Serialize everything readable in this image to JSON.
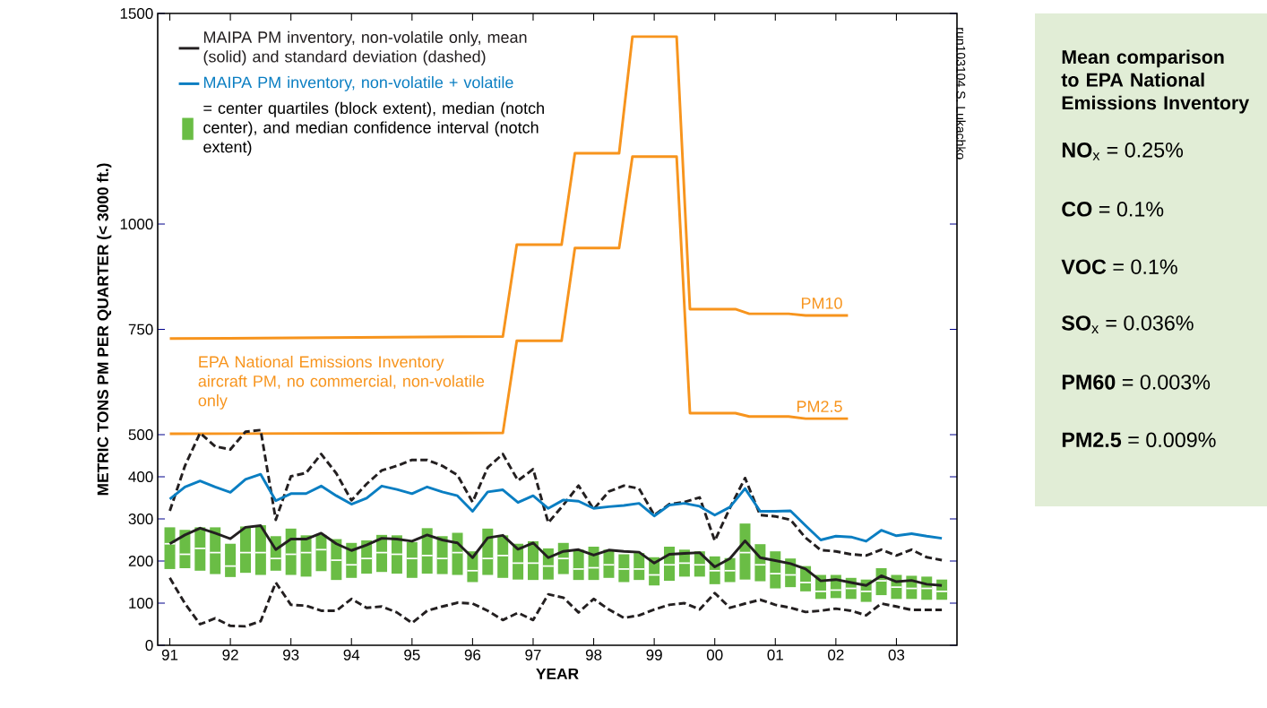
{
  "chart_data": [
    {
      "type": "line",
      "xlabel": "YEAR",
      "ylabel": "METRIC TONS PM PER QUARTER (< 3000 ft.)",
      "x": [
        1991,
        1991.25,
        1991.5,
        1991.75,
        1992,
        1992.25,
        1992.5,
        1992.75,
        1993,
        1993.25,
        1993.5,
        1993.75,
        1994,
        1994.25,
        1994.5,
        1994.75,
        1995,
        1995.25,
        1995.5,
        1995.75,
        1996,
        1996.25,
        1996.5,
        1996.75,
        1997,
        1997.25,
        1997.5,
        1997.75,
        1998,
        1998.25,
        1998.5,
        1998.75,
        1999,
        1999.25,
        1999.5,
        1999.75,
        2000,
        2000.25,
        2000.5,
        2000.75,
        2001,
        2001.25,
        2001.5,
        2001.75,
        2002,
        2002.25,
        2002.5,
        2002.75,
        2003,
        2003.25,
        2003.5,
        2003.75
      ],
      "xlim": [
        1990.8,
        2004.0
      ],
      "xticks": [
        {
          "value": 1991,
          "label": "91"
        },
        {
          "value": 1992,
          "label": "92"
        },
        {
          "value": 1993,
          "label": "93"
        },
        {
          "value": 1994,
          "label": "94"
        },
        {
          "value": 1995,
          "label": "95"
        },
        {
          "value": 1996,
          "label": "96"
        },
        {
          "value": 1997,
          "label": "97"
        },
        {
          "value": 1998,
          "label": "98"
        },
        {
          "value": 1999,
          "label": "99"
        },
        {
          "value": 2000,
          "label": "00"
        },
        {
          "value": 2001,
          "label": "01"
        },
        {
          "value": 2002,
          "label": "02"
        },
        {
          "value": 2003,
          "label": "03"
        }
      ],
      "ylim": [
        0,
        1500
      ],
      "yticks": [
        0,
        100,
        200,
        300,
        400,
        500,
        750,
        1000,
        1500
      ],
      "legend": "top left",
      "series": [
        {
          "name": "MAIPA PM inventory, non-volatile only, mean (solid) and standard deviation (dashed)",
          "color": "#231f20",
          "values": [
            241,
            262,
            278,
            266,
            253,
            280,
            284,
            227,
            252,
            252,
            266,
            241,
            225,
            238,
            254,
            252,
            247,
            262,
            250,
            243,
            208,
            255,
            261,
            228,
            243,
            208,
            223,
            227,
            214,
            226,
            223,
            221,
            195,
            216,
            218,
            220,
            186,
            206,
            248,
            208,
            201,
            194,
            181,
            153,
            156,
            149,
            142,
            165,
            151,
            154,
            145,
            142
          ]
        },
        {
          "name": "MAIPA PM inventory, non-volatile + volatile",
          "color": "#0a7ec2",
          "values": [
            347,
            376,
            390,
            376,
            363,
            394,
            406,
            343,
            360,
            360,
            378,
            355,
            335,
            349,
            378,
            370,
            360,
            376,
            364,
            355,
            318,
            364,
            369,
            339,
            355,
            325,
            345,
            342,
            325,
            329,
            332,
            337,
            307,
            333,
            337,
            330,
            309,
            328,
            372,
            318,
            318,
            319,
            284,
            250,
            259,
            257,
            247,
            273,
            260,
            265,
            259,
            254
          ]
        },
        {
          "name": "= center quartiles (block extent), median (notch center), and median confidence interval (notch extent)",
          "type": "box",
          "color": "#6abd45",
          "boxes": [
            {
              "low": 181,
              "q1": 181,
              "median": 241,
              "q3": 280,
              "high": 280
            },
            {
              "low": 183,
              "q1": 183,
              "median": 216,
              "q3": 274,
              "high": 274
            },
            {
              "low": 177,
              "q1": 177,
              "median": 230,
              "q3": 280,
              "high": 280
            },
            {
              "low": 169,
              "q1": 169,
              "median": 220,
              "q3": 280,
              "high": 280
            },
            {
              "low": 162,
              "q1": 162,
              "median": 188,
              "q3": 241,
              "high": 241
            },
            {
              "low": 172,
              "q1": 172,
              "median": 220,
              "q3": 282,
              "high": 282
            },
            {
              "low": 167,
              "q1": 167,
              "median": 220,
              "q3": 285,
              "high": 285
            },
            {
              "low": 177,
              "q1": 177,
              "median": 206,
              "q3": 259,
              "high": 259
            },
            {
              "low": 167,
              "q1": 167,
              "median": 216,
              "q3": 277,
              "high": 277
            },
            {
              "low": 163,
              "q1": 163,
              "median": 220,
              "q3": 261,
              "high": 261
            },
            {
              "low": 176,
              "q1": 176,
              "median": 227,
              "q3": 262,
              "high": 262
            },
            {
              "low": 155,
              "q1": 155,
              "median": 202,
              "q3": 252,
              "high": 252
            },
            {
              "low": 160,
              "q1": 160,
              "median": 191,
              "q3": 243,
              "high": 243
            },
            {
              "low": 170,
              "q1": 170,
              "median": 206,
              "q3": 249,
              "high": 249
            },
            {
              "low": 174,
              "q1": 174,
              "median": 220,
              "q3": 262,
              "high": 262
            },
            {
              "low": 170,
              "q1": 170,
              "median": 216,
              "q3": 261,
              "high": 261
            },
            {
              "low": 160,
              "q1": 160,
              "median": 206,
              "q3": 245,
              "high": 245
            },
            {
              "low": 170,
              "q1": 170,
              "median": 213,
              "q3": 278,
              "high": 278
            },
            {
              "low": 169,
              "q1": 169,
              "median": 206,
              "q3": 259,
              "high": 259
            },
            {
              "low": 167,
              "q1": 167,
              "median": 220,
              "q3": 267,
              "high": 267
            },
            {
              "low": 150,
              "q1": 150,
              "median": 177,
              "q3": 223,
              "high": 223
            },
            {
              "low": 167,
              "q1": 167,
              "median": 206,
              "q3": 277,
              "high": 277
            },
            {
              "low": 160,
              "q1": 160,
              "median": 213,
              "q3": 261,
              "high": 261
            },
            {
              "low": 156,
              "q1": 156,
              "median": 195,
              "q3": 241,
              "high": 241
            },
            {
              "low": 155,
              "q1": 155,
              "median": 195,
              "q3": 247,
              "high": 247
            },
            {
              "low": 156,
              "q1": 156,
              "median": 188,
              "q3": 230,
              "high": 230
            },
            {
              "low": 169,
              "q1": 169,
              "median": 206,
              "q3": 243,
              "high": 243
            },
            {
              "low": 155,
              "q1": 155,
              "median": 181,
              "q3": 227,
              "high": 227
            },
            {
              "low": 155,
              "q1": 155,
              "median": 184,
              "q3": 234,
              "high": 234
            },
            {
              "low": 160,
              "q1": 160,
              "median": 191,
              "q3": 227,
              "high": 227
            },
            {
              "low": 150,
              "q1": 150,
              "median": 181,
              "q3": 216,
              "high": 216
            },
            {
              "low": 155,
              "q1": 155,
              "median": 181,
              "q3": 219,
              "high": 219
            },
            {
              "low": 142,
              "q1": 142,
              "median": 167,
              "q3": 209,
              "high": 209
            },
            {
              "low": 153,
              "q1": 153,
              "median": 191,
              "q3": 234,
              "high": 234
            },
            {
              "low": 163,
              "q1": 163,
              "median": 195,
              "q3": 227,
              "high": 227
            },
            {
              "low": 163,
              "q1": 163,
              "median": 191,
              "q3": 223,
              "high": 223
            },
            {
              "low": 145,
              "q1": 145,
              "median": 177,
              "q3": 211,
              "high": 211
            },
            {
              "low": 150,
              "q1": 150,
              "median": 177,
              "q3": 207,
              "high": 207
            },
            {
              "low": 156,
              "q1": 156,
              "median": 220,
              "q3": 289,
              "high": 289
            },
            {
              "low": 152,
              "q1": 152,
              "median": 191,
              "q3": 240,
              "high": 240
            },
            {
              "low": 135,
              "q1": 135,
              "median": 170,
              "q3": 223,
              "high": 223
            },
            {
              "low": 138,
              "q1": 138,
              "median": 167,
              "q3": 206,
              "high": 206
            },
            {
              "low": 128,
              "q1": 128,
              "median": 149,
              "q3": 188,
              "high": 188
            },
            {
              "low": 110,
              "q1": 110,
              "median": 128,
              "q3": 167,
              "high": 167
            },
            {
              "low": 112,
              "q1": 112,
              "median": 131,
              "q3": 167,
              "high": 167
            },
            {
              "low": 110,
              "q1": 110,
              "median": 135,
              "q3": 160,
              "high": 160
            },
            {
              "low": 103,
              "q1": 103,
              "median": 128,
              "q3": 156,
              "high": 156
            },
            {
              "low": 119,
              "q1": 119,
              "median": 153,
              "q3": 183,
              "high": 183
            },
            {
              "low": 110,
              "q1": 110,
              "median": 138,
              "q3": 167,
              "high": 167
            },
            {
              "low": 110,
              "q1": 110,
              "median": 135,
              "q3": 165,
              "high": 165
            },
            {
              "low": 108,
              "q1": 108,
              "median": 135,
              "q3": 163,
              "high": 163
            },
            {
              "low": 108,
              "q1": 108,
              "median": 128,
              "q3": 156,
              "high": 156
            }
          ]
        },
        {
          "color": "#231f20",
          "line_style": "dashed",
          "values": [
            319,
            426,
            504,
            472,
            465,
            507,
            511,
            298,
            401,
            409,
            454,
            408,
            344,
            383,
            415,
            426,
            440,
            440,
            426,
            404,
            340,
            422,
            454,
            391,
            418,
            291,
            333,
            379,
            323,
            365,
            379,
            372,
            309,
            335,
            340,
            351,
            248,
            326,
            397,
            309,
            306,
            298,
            255,
            226,
            223,
            216,
            213,
            227,
            213,
            227,
            209,
            202
          ]
        },
        {
          "color": "#231f20",
          "line_style": "dashed",
          "values": [
            160,
            99,
            50,
            64,
            46,
            45,
            57,
            149,
            96,
            94,
            82,
            82,
            110,
            89,
            92,
            78,
            53,
            82,
            92,
            101,
            99,
            82,
            60,
            77,
            60,
            121,
            113,
            78,
            110,
            85,
            65,
            71,
            85,
            96,
            100,
            85,
            124,
            89,
            99,
            108,
            96,
            89,
            79,
            82,
            87,
            82,
            71,
            99,
            92,
            84,
            84,
            84
          ]
        },
        {
          "name": "PM10",
          "color": "#f7941d",
          "x": [
            1991,
            1996.5,
            1996.73,
            1997.47,
            1997.69,
            1998.42,
            1998.64,
            1999.37,
            1999.59,
            2000.34,
            2000.57,
            2001.22,
            2001.5,
            2002.2
          ],
          "values": [
            728,
            733,
            951,
            951,
            1168,
            1168,
            1445,
            1445,
            798,
            798,
            787,
            787,
            783,
            783
          ]
        },
        {
          "name": "PM2.5",
          "color": "#f7941d",
          "x": [
            1991,
            1996.5,
            1996.73,
            1997.47,
            1997.69,
            1998.42,
            1998.64,
            1999.37,
            1999.59,
            2000.34,
            2000.57,
            2001.22,
            2001.5,
            2002.2
          ],
          "values": [
            502,
            504,
            723,
            723,
            943,
            943,
            1160,
            1160,
            551,
            551,
            543,
            543,
            538,
            538
          ]
        }
      ],
      "annotations": [
        "EPA National Emissions Inventory aircraft PM, no commercial, non-volatile only",
        "run103104 S. Lukachko"
      ]
    },
    {
      "type": "other",
      "title": "Mean comparison to EPA National Emissions Inventory",
      "annotations": [
        "**NO**$_{x}$ = 0.25%",
        "**CO** = 0.1%",
        "**VOC** = 0.1%",
        "**SO**$_{x}$ = 0.036%",
        "**PM60** = 0.003%",
        "**PM2.5** = 0.009%"
      ]
    }
  ]
}
